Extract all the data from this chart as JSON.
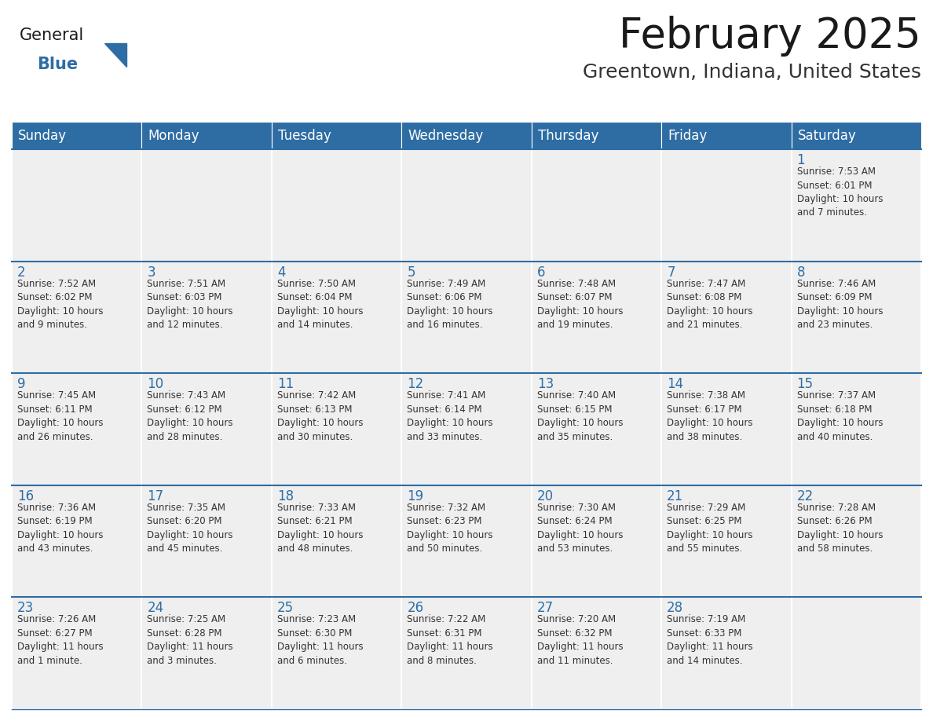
{
  "title": "February 2025",
  "subtitle": "Greentown, Indiana, United States",
  "days_of_week": [
    "Sunday",
    "Monday",
    "Tuesday",
    "Wednesday",
    "Thursday",
    "Friday",
    "Saturday"
  ],
  "header_bg": "#2E6DA4",
  "header_text": "#FFFFFF",
  "cell_bg": "#EFEFEF",
  "cell_border_color": "#FFFFFF",
  "week_divider_color": "#2E6DA4",
  "day_num_color": "#2E6DA4",
  "detail_color": "#333333",
  "title_color": "#1a1a1a",
  "subtitle_color": "#333333",
  "logo_general_color": "#1a1a1a",
  "logo_blue_color": "#2E6DA4",
  "weeks": [
    {
      "days": [
        {
          "date": null,
          "info": null
        },
        {
          "date": null,
          "info": null
        },
        {
          "date": null,
          "info": null
        },
        {
          "date": null,
          "info": null
        },
        {
          "date": null,
          "info": null
        },
        {
          "date": null,
          "info": null
        },
        {
          "date": 1,
          "info": "Sunrise: 7:53 AM\nSunset: 6:01 PM\nDaylight: 10 hours\nand 7 minutes."
        }
      ]
    },
    {
      "days": [
        {
          "date": 2,
          "info": "Sunrise: 7:52 AM\nSunset: 6:02 PM\nDaylight: 10 hours\nand 9 minutes."
        },
        {
          "date": 3,
          "info": "Sunrise: 7:51 AM\nSunset: 6:03 PM\nDaylight: 10 hours\nand 12 minutes."
        },
        {
          "date": 4,
          "info": "Sunrise: 7:50 AM\nSunset: 6:04 PM\nDaylight: 10 hours\nand 14 minutes."
        },
        {
          "date": 5,
          "info": "Sunrise: 7:49 AM\nSunset: 6:06 PM\nDaylight: 10 hours\nand 16 minutes."
        },
        {
          "date": 6,
          "info": "Sunrise: 7:48 AM\nSunset: 6:07 PM\nDaylight: 10 hours\nand 19 minutes."
        },
        {
          "date": 7,
          "info": "Sunrise: 7:47 AM\nSunset: 6:08 PM\nDaylight: 10 hours\nand 21 minutes."
        },
        {
          "date": 8,
          "info": "Sunrise: 7:46 AM\nSunset: 6:09 PM\nDaylight: 10 hours\nand 23 minutes."
        }
      ]
    },
    {
      "days": [
        {
          "date": 9,
          "info": "Sunrise: 7:45 AM\nSunset: 6:11 PM\nDaylight: 10 hours\nand 26 minutes."
        },
        {
          "date": 10,
          "info": "Sunrise: 7:43 AM\nSunset: 6:12 PM\nDaylight: 10 hours\nand 28 minutes."
        },
        {
          "date": 11,
          "info": "Sunrise: 7:42 AM\nSunset: 6:13 PM\nDaylight: 10 hours\nand 30 minutes."
        },
        {
          "date": 12,
          "info": "Sunrise: 7:41 AM\nSunset: 6:14 PM\nDaylight: 10 hours\nand 33 minutes."
        },
        {
          "date": 13,
          "info": "Sunrise: 7:40 AM\nSunset: 6:15 PM\nDaylight: 10 hours\nand 35 minutes."
        },
        {
          "date": 14,
          "info": "Sunrise: 7:38 AM\nSunset: 6:17 PM\nDaylight: 10 hours\nand 38 minutes."
        },
        {
          "date": 15,
          "info": "Sunrise: 7:37 AM\nSunset: 6:18 PM\nDaylight: 10 hours\nand 40 minutes."
        }
      ]
    },
    {
      "days": [
        {
          "date": 16,
          "info": "Sunrise: 7:36 AM\nSunset: 6:19 PM\nDaylight: 10 hours\nand 43 minutes."
        },
        {
          "date": 17,
          "info": "Sunrise: 7:35 AM\nSunset: 6:20 PM\nDaylight: 10 hours\nand 45 minutes."
        },
        {
          "date": 18,
          "info": "Sunrise: 7:33 AM\nSunset: 6:21 PM\nDaylight: 10 hours\nand 48 minutes."
        },
        {
          "date": 19,
          "info": "Sunrise: 7:32 AM\nSunset: 6:23 PM\nDaylight: 10 hours\nand 50 minutes."
        },
        {
          "date": 20,
          "info": "Sunrise: 7:30 AM\nSunset: 6:24 PM\nDaylight: 10 hours\nand 53 minutes."
        },
        {
          "date": 21,
          "info": "Sunrise: 7:29 AM\nSunset: 6:25 PM\nDaylight: 10 hours\nand 55 minutes."
        },
        {
          "date": 22,
          "info": "Sunrise: 7:28 AM\nSunset: 6:26 PM\nDaylight: 10 hours\nand 58 minutes."
        }
      ]
    },
    {
      "days": [
        {
          "date": 23,
          "info": "Sunrise: 7:26 AM\nSunset: 6:27 PM\nDaylight: 11 hours\nand 1 minute."
        },
        {
          "date": 24,
          "info": "Sunrise: 7:25 AM\nSunset: 6:28 PM\nDaylight: 11 hours\nand 3 minutes."
        },
        {
          "date": 25,
          "info": "Sunrise: 7:23 AM\nSunset: 6:30 PM\nDaylight: 11 hours\nand 6 minutes."
        },
        {
          "date": 26,
          "info": "Sunrise: 7:22 AM\nSunset: 6:31 PM\nDaylight: 11 hours\nand 8 minutes."
        },
        {
          "date": 27,
          "info": "Sunrise: 7:20 AM\nSunset: 6:32 PM\nDaylight: 11 hours\nand 11 minutes."
        },
        {
          "date": 28,
          "info": "Sunrise: 7:19 AM\nSunset: 6:33 PM\nDaylight: 11 hours\nand 14 minutes."
        },
        {
          "date": null,
          "info": null
        }
      ]
    }
  ]
}
